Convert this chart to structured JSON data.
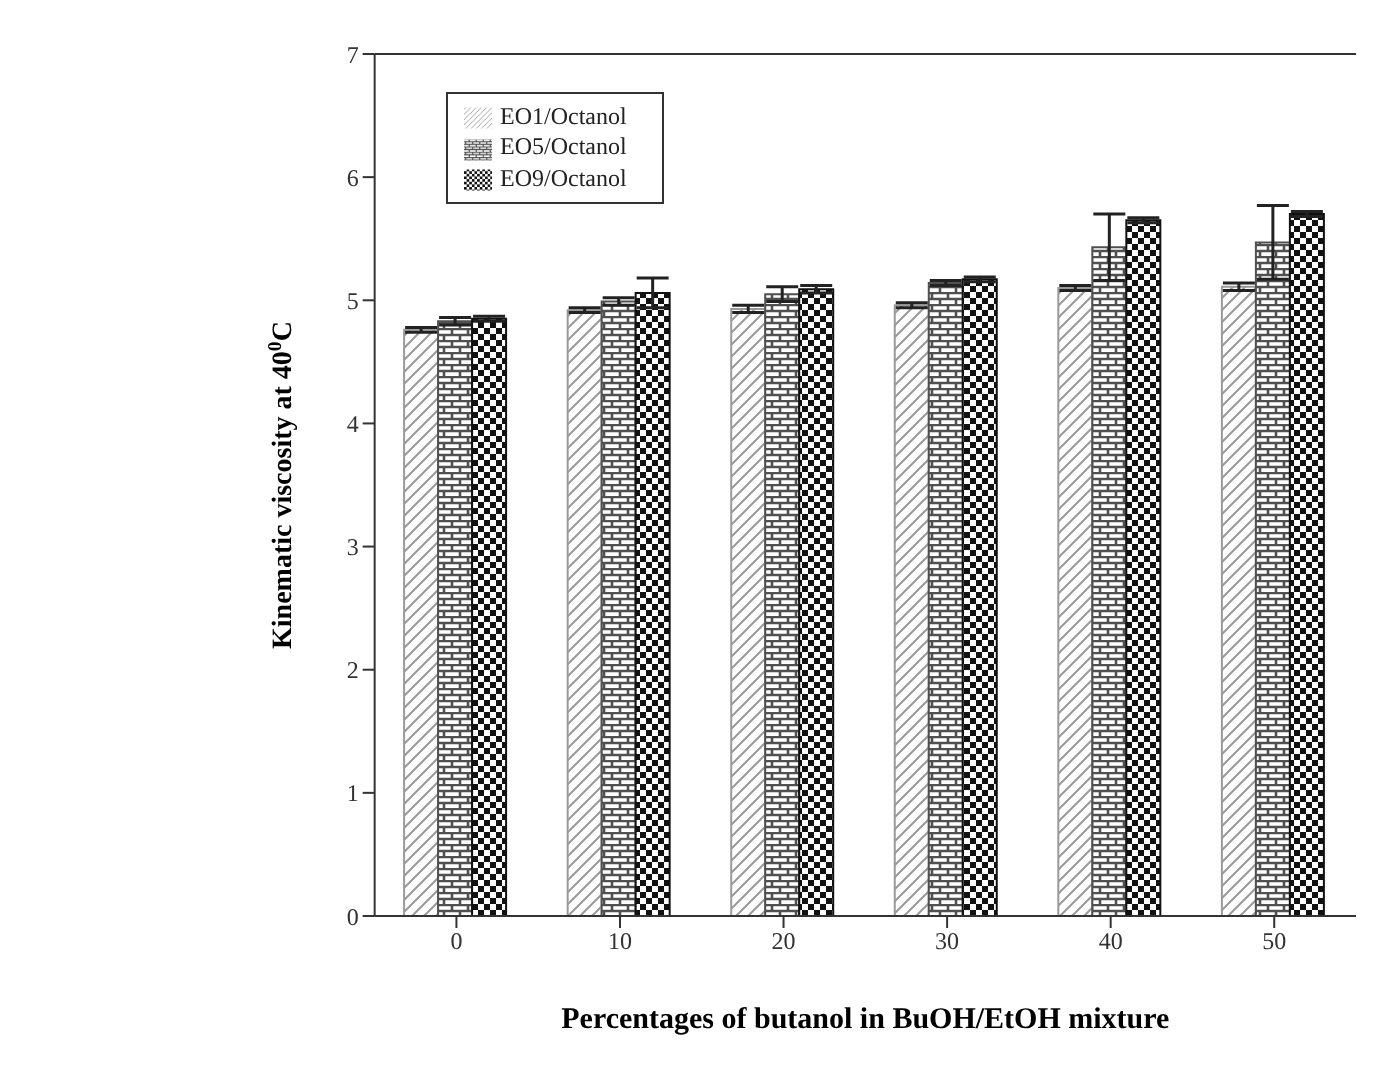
{
  "chart_data": {
    "type": "bar",
    "xlabel": "Percentages of butanol in BuOH/EtOH mixture",
    "ylabel": "Kinematic viscosity at 40$^{0}$C",
    "categories": [
      "0",
      "10",
      "20",
      "30",
      "40",
      "50"
    ],
    "series": [
      {
        "name": "EO1/Octanol",
        "color": "#9a9a9a",
        "values": [
          4.76,
          4.92,
          4.93,
          4.96,
          5.1,
          5.11
        ],
        "errors": [
          0.02,
          0.02,
          0.03,
          0.02,
          0.02,
          0.03
        ]
      },
      {
        "name": "EO5/Octanol",
        "color": "#505050",
        "values": [
          4.83,
          4.99,
          5.05,
          5.14,
          5.43,
          5.47
        ],
        "errors": [
          0.03,
          0.03,
          0.06,
          0.02,
          0.27,
          0.3
        ]
      },
      {
        "name": "EO9/Octanol",
        "color": "#111111",
        "values": [
          4.85,
          5.06,
          5.09,
          5.17,
          5.65,
          5.7
        ],
        "errors": [
          0.02,
          0.12,
          0.03,
          0.02,
          0.02,
          0.02
        ]
      }
    ],
    "ylim": [
      0,
      7
    ],
    "yticks": [
      0,
      1,
      2,
      3,
      4,
      5,
      6,
      7
    ],
    "legend": "top left",
    "grid": false
  }
}
